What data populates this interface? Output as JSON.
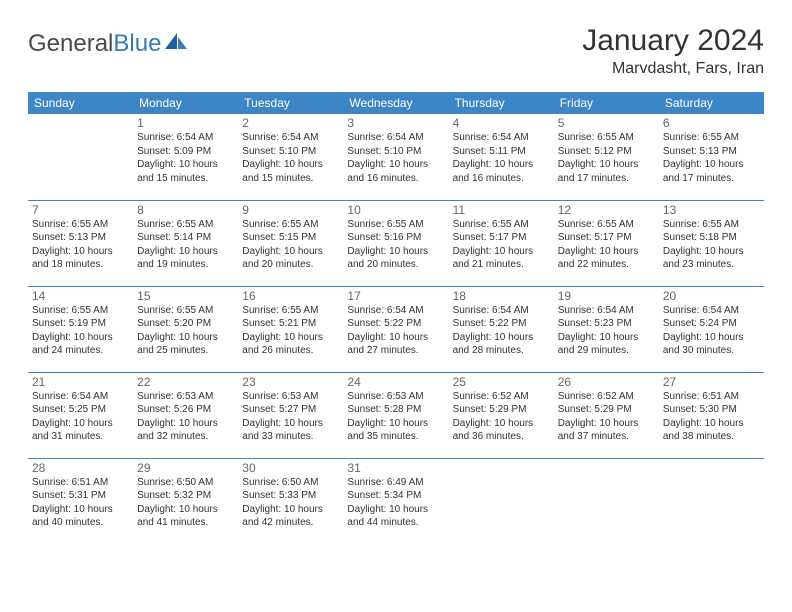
{
  "brand": {
    "part1": "General",
    "part2": "Blue"
  },
  "title": "January 2024",
  "location": "Marvdasht, Fars, Iran",
  "colors": {
    "header_bg": "#3d86c6",
    "header_text": "#ffffff",
    "text": "#333333",
    "daynum": "#666666",
    "rule": "#3d86c6",
    "logo_gray": "#4a4a4a",
    "logo_blue": "#3a7ab8",
    "background": "#ffffff"
  },
  "fonts": {
    "title_size_pt": 22,
    "location_size_pt": 12,
    "dayheader_size_pt": 9,
    "cell_size_pt": 7.5
  },
  "day_headers": [
    "Sunday",
    "Monday",
    "Tuesday",
    "Wednesday",
    "Thursday",
    "Friday",
    "Saturday"
  ],
  "weeks": [
    [
      null,
      {
        "n": "1",
        "sr": "Sunrise: 6:54 AM",
        "ss": "Sunset: 5:09 PM",
        "d1": "Daylight: 10 hours",
        "d2": "and 15 minutes."
      },
      {
        "n": "2",
        "sr": "Sunrise: 6:54 AM",
        "ss": "Sunset: 5:10 PM",
        "d1": "Daylight: 10 hours",
        "d2": "and 15 minutes."
      },
      {
        "n": "3",
        "sr": "Sunrise: 6:54 AM",
        "ss": "Sunset: 5:10 PM",
        "d1": "Daylight: 10 hours",
        "d2": "and 16 minutes."
      },
      {
        "n": "4",
        "sr": "Sunrise: 6:54 AM",
        "ss": "Sunset: 5:11 PM",
        "d1": "Daylight: 10 hours",
        "d2": "and 16 minutes."
      },
      {
        "n": "5",
        "sr": "Sunrise: 6:55 AM",
        "ss": "Sunset: 5:12 PM",
        "d1": "Daylight: 10 hours",
        "d2": "and 17 minutes."
      },
      {
        "n": "6",
        "sr": "Sunrise: 6:55 AM",
        "ss": "Sunset: 5:13 PM",
        "d1": "Daylight: 10 hours",
        "d2": "and 17 minutes."
      }
    ],
    [
      {
        "n": "7",
        "sr": "Sunrise: 6:55 AM",
        "ss": "Sunset: 5:13 PM",
        "d1": "Daylight: 10 hours",
        "d2": "and 18 minutes."
      },
      {
        "n": "8",
        "sr": "Sunrise: 6:55 AM",
        "ss": "Sunset: 5:14 PM",
        "d1": "Daylight: 10 hours",
        "d2": "and 19 minutes."
      },
      {
        "n": "9",
        "sr": "Sunrise: 6:55 AM",
        "ss": "Sunset: 5:15 PM",
        "d1": "Daylight: 10 hours",
        "d2": "and 20 minutes."
      },
      {
        "n": "10",
        "sr": "Sunrise: 6:55 AM",
        "ss": "Sunset: 5:16 PM",
        "d1": "Daylight: 10 hours",
        "d2": "and 20 minutes."
      },
      {
        "n": "11",
        "sr": "Sunrise: 6:55 AM",
        "ss": "Sunset: 5:17 PM",
        "d1": "Daylight: 10 hours",
        "d2": "and 21 minutes."
      },
      {
        "n": "12",
        "sr": "Sunrise: 6:55 AM",
        "ss": "Sunset: 5:17 PM",
        "d1": "Daylight: 10 hours",
        "d2": "and 22 minutes."
      },
      {
        "n": "13",
        "sr": "Sunrise: 6:55 AM",
        "ss": "Sunset: 5:18 PM",
        "d1": "Daylight: 10 hours",
        "d2": "and 23 minutes."
      }
    ],
    [
      {
        "n": "14",
        "sr": "Sunrise: 6:55 AM",
        "ss": "Sunset: 5:19 PM",
        "d1": "Daylight: 10 hours",
        "d2": "and 24 minutes."
      },
      {
        "n": "15",
        "sr": "Sunrise: 6:55 AM",
        "ss": "Sunset: 5:20 PM",
        "d1": "Daylight: 10 hours",
        "d2": "and 25 minutes."
      },
      {
        "n": "16",
        "sr": "Sunrise: 6:55 AM",
        "ss": "Sunset: 5:21 PM",
        "d1": "Daylight: 10 hours",
        "d2": "and 26 minutes."
      },
      {
        "n": "17",
        "sr": "Sunrise: 6:54 AM",
        "ss": "Sunset: 5:22 PM",
        "d1": "Daylight: 10 hours",
        "d2": "and 27 minutes."
      },
      {
        "n": "18",
        "sr": "Sunrise: 6:54 AM",
        "ss": "Sunset: 5:22 PM",
        "d1": "Daylight: 10 hours",
        "d2": "and 28 minutes."
      },
      {
        "n": "19",
        "sr": "Sunrise: 6:54 AM",
        "ss": "Sunset: 5:23 PM",
        "d1": "Daylight: 10 hours",
        "d2": "and 29 minutes."
      },
      {
        "n": "20",
        "sr": "Sunrise: 6:54 AM",
        "ss": "Sunset: 5:24 PM",
        "d1": "Daylight: 10 hours",
        "d2": "and 30 minutes."
      }
    ],
    [
      {
        "n": "21",
        "sr": "Sunrise: 6:54 AM",
        "ss": "Sunset: 5:25 PM",
        "d1": "Daylight: 10 hours",
        "d2": "and 31 minutes."
      },
      {
        "n": "22",
        "sr": "Sunrise: 6:53 AM",
        "ss": "Sunset: 5:26 PM",
        "d1": "Daylight: 10 hours",
        "d2": "and 32 minutes."
      },
      {
        "n": "23",
        "sr": "Sunrise: 6:53 AM",
        "ss": "Sunset: 5:27 PM",
        "d1": "Daylight: 10 hours",
        "d2": "and 33 minutes."
      },
      {
        "n": "24",
        "sr": "Sunrise: 6:53 AM",
        "ss": "Sunset: 5:28 PM",
        "d1": "Daylight: 10 hours",
        "d2": "and 35 minutes."
      },
      {
        "n": "25",
        "sr": "Sunrise: 6:52 AM",
        "ss": "Sunset: 5:29 PM",
        "d1": "Daylight: 10 hours",
        "d2": "and 36 minutes."
      },
      {
        "n": "26",
        "sr": "Sunrise: 6:52 AM",
        "ss": "Sunset: 5:29 PM",
        "d1": "Daylight: 10 hours",
        "d2": "and 37 minutes."
      },
      {
        "n": "27",
        "sr": "Sunrise: 6:51 AM",
        "ss": "Sunset: 5:30 PM",
        "d1": "Daylight: 10 hours",
        "d2": "and 38 minutes."
      }
    ],
    [
      {
        "n": "28",
        "sr": "Sunrise: 6:51 AM",
        "ss": "Sunset: 5:31 PM",
        "d1": "Daylight: 10 hours",
        "d2": "and 40 minutes."
      },
      {
        "n": "29",
        "sr": "Sunrise: 6:50 AM",
        "ss": "Sunset: 5:32 PM",
        "d1": "Daylight: 10 hours",
        "d2": "and 41 minutes."
      },
      {
        "n": "30",
        "sr": "Sunrise: 6:50 AM",
        "ss": "Sunset: 5:33 PM",
        "d1": "Daylight: 10 hours",
        "d2": "and 42 minutes."
      },
      {
        "n": "31",
        "sr": "Sunrise: 6:49 AM",
        "ss": "Sunset: 5:34 PM",
        "d1": "Daylight: 10 hours",
        "d2": "and 44 minutes."
      },
      null,
      null,
      null
    ]
  ]
}
